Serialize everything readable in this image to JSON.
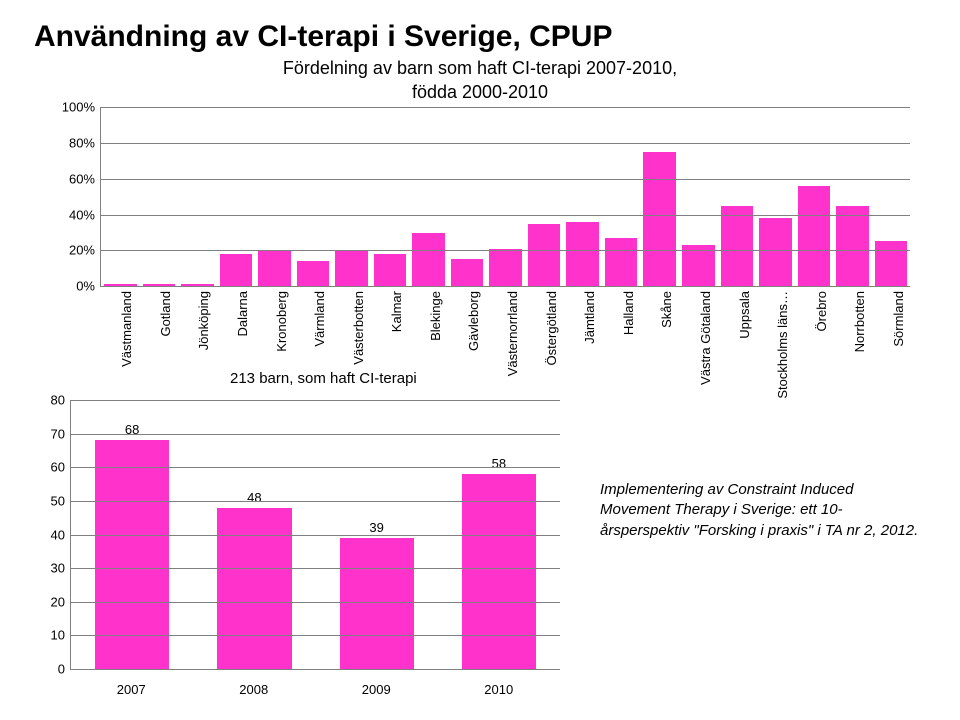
{
  "title": "Användning av CI-terapi i Sverige, CPUP",
  "subtitle_line1": "Fördelning av barn som haft CI-terapi 2007-2010,",
  "subtitle_line2": "födda 2000-2010",
  "top_chart": {
    "type": "bar",
    "ylim": [
      0,
      100
    ],
    "ytick_step": 20,
    "ytick_suffix": "%",
    "bar_color": "#ff33cc",
    "grid_color": "#808080",
    "background_color": "#ffffff",
    "label_fontsize": 13,
    "categories": [
      "Västmanland",
      "Gotland",
      "Jönköping",
      "Dalarna",
      "Kronoberg",
      "Värmland",
      "Västerbotten",
      "Kalmar",
      "Blekinge",
      "Gävleborg",
      "Västernorrland",
      "Östergötland",
      "Jämtland",
      "Halland",
      "Skåne",
      "Västra Götaland",
      "Uppsala",
      "Stockholms läns…",
      "Örebro",
      "Norrbotten",
      "Sörmland"
    ],
    "values": [
      1,
      1,
      1,
      18,
      20,
      14,
      20,
      18,
      30,
      15,
      21,
      35,
      36,
      27,
      75,
      23,
      45,
      38,
      56,
      45,
      25
    ]
  },
  "mid_caption": "213 barn, som haft CI-terapi",
  "bottom_chart": {
    "type": "bar",
    "ylim": [
      0,
      80
    ],
    "ytick_step": 10,
    "bar_color": "#ff33cc",
    "grid_color": "#808080",
    "background_color": "#ffffff",
    "label_fontsize": 13,
    "categories": [
      "2007",
      "2008",
      "2009",
      "2010"
    ],
    "values": [
      68,
      48,
      39,
      58
    ]
  },
  "caption_text": "Implementering av Constraint Induced Movement Therapy i Sverige: ett 10-årsperspektiv \"Forsking i praxis\" i TA nr 2, 2012."
}
